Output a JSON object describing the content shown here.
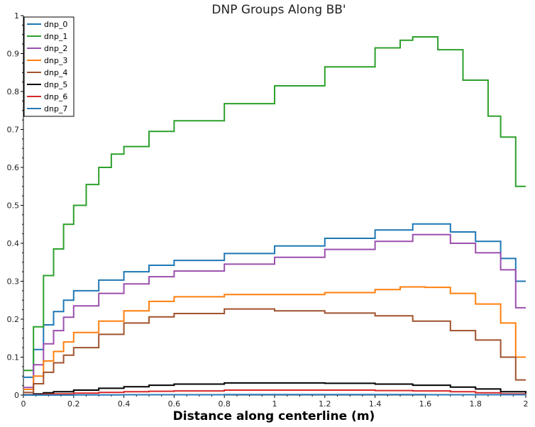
{
  "chart_data": {
    "type": "line",
    "title": "DNP Groups Along BB'",
    "xlabel": "Distance along centerline (m)",
    "ylabel": "",
    "xlim": [
      0,
      2
    ],
    "ylim": [
      0,
      1
    ],
    "xticks": [
      "0",
      "0.2",
      "0.4",
      "0.6",
      "0.8",
      "1",
      "1.2",
      "1.4",
      "1.6",
      "1.8",
      "2"
    ],
    "yticks": [
      "0",
      "0.1",
      "0.2",
      "0.3",
      "0.4",
      "0.5",
      "0.6",
      "0.7",
      "0.8",
      "0.9",
      "1"
    ],
    "grid": false,
    "legend_position": "top-left",
    "step": true,
    "series": [
      {
        "name": "dnp_0",
        "color": "#1f77b4",
        "x": [
          0,
          0.04,
          0.08,
          0.12,
          0.16,
          0.2,
          0.3,
          0.4,
          0.5,
          0.6,
          0.8,
          1.0,
          1.2,
          1.4,
          1.55,
          1.7,
          1.8,
          1.9,
          1.96,
          2.0
        ],
        "y": [
          0.047,
          0.12,
          0.185,
          0.22,
          0.25,
          0.275,
          0.303,
          0.325,
          0.342,
          0.355,
          0.373,
          0.393,
          0.413,
          0.435,
          0.451,
          0.43,
          0.405,
          0.36,
          0.3,
          0.3
        ]
      },
      {
        "name": "dnp_1",
        "color": "#2ca02c",
        "x": [
          0,
          0.04,
          0.08,
          0.12,
          0.16,
          0.2,
          0.25,
          0.3,
          0.35,
          0.4,
          0.5,
          0.6,
          0.8,
          1.0,
          1.2,
          1.4,
          1.5,
          1.55,
          1.65,
          1.75,
          1.85,
          1.9,
          1.96,
          2.0
        ],
        "y": [
          0.065,
          0.18,
          0.315,
          0.385,
          0.45,
          0.5,
          0.555,
          0.6,
          0.635,
          0.655,
          0.695,
          0.723,
          0.768,
          0.815,
          0.865,
          0.915,
          0.935,
          0.944,
          0.91,
          0.83,
          0.735,
          0.68,
          0.55,
          0.55
        ]
      },
      {
        "name": "dnp_2",
        "color": "#9b4fad",
        "x": [
          0,
          0.04,
          0.08,
          0.12,
          0.16,
          0.2,
          0.3,
          0.4,
          0.5,
          0.6,
          0.8,
          1.0,
          1.2,
          1.4,
          1.55,
          1.7,
          1.8,
          1.9,
          1.96,
          2.0
        ],
        "y": [
          0.02,
          0.08,
          0.135,
          0.17,
          0.205,
          0.235,
          0.268,
          0.293,
          0.312,
          0.327,
          0.345,
          0.363,
          0.384,
          0.405,
          0.423,
          0.4,
          0.375,
          0.33,
          0.23,
          0.23
        ]
      },
      {
        "name": "dnp_3",
        "color": "#ff7f0e",
        "x": [
          0,
          0.04,
          0.08,
          0.12,
          0.16,
          0.2,
          0.3,
          0.4,
          0.5,
          0.6,
          0.8,
          1.0,
          1.2,
          1.4,
          1.5,
          1.6,
          1.7,
          1.8,
          1.9,
          1.96,
          2.0
        ],
        "y": [
          0.015,
          0.05,
          0.09,
          0.115,
          0.14,
          0.165,
          0.195,
          0.222,
          0.247,
          0.259,
          0.265,
          0.265,
          0.27,
          0.278,
          0.285,
          0.284,
          0.268,
          0.24,
          0.19,
          0.1,
          0.1
        ]
      },
      {
        "name": "dnp_4",
        "color": "#a0522d",
        "x": [
          0,
          0.04,
          0.08,
          0.12,
          0.16,
          0.2,
          0.3,
          0.4,
          0.5,
          0.6,
          0.8,
          1.0,
          1.2,
          1.4,
          1.55,
          1.7,
          1.8,
          1.9,
          1.96,
          2.0
        ],
        "y": [
          0.007,
          0.03,
          0.06,
          0.085,
          0.105,
          0.125,
          0.16,
          0.19,
          0.206,
          0.215,
          0.227,
          0.222,
          0.216,
          0.209,
          0.195,
          0.17,
          0.145,
          0.1,
          0.04,
          0.04
        ]
      },
      {
        "name": "dnp_5",
        "color": "#000000",
        "x": [
          0,
          0.04,
          0.08,
          0.12,
          0.2,
          0.3,
          0.4,
          0.5,
          0.6,
          0.8,
          1.0,
          1.2,
          1.4,
          1.55,
          1.7,
          1.8,
          1.9,
          2.0
        ],
        "y": [
          0.001,
          0.003,
          0.006,
          0.009,
          0.013,
          0.018,
          0.022,
          0.026,
          0.029,
          0.032,
          0.032,
          0.031,
          0.029,
          0.026,
          0.021,
          0.016,
          0.009,
          0.004
        ]
      },
      {
        "name": "dnp_6",
        "color": "#d62728",
        "x": [
          0,
          0.04,
          0.08,
          0.12,
          0.2,
          0.3,
          0.4,
          0.5,
          0.6,
          0.8,
          1.0,
          1.2,
          1.4,
          1.55,
          1.7,
          1.8,
          1.9,
          2.0
        ],
        "y": [
          0.0005,
          0.001,
          0.002,
          0.003,
          0.005,
          0.007,
          0.009,
          0.01,
          0.011,
          0.013,
          0.013,
          0.013,
          0.012,
          0.011,
          0.009,
          0.006,
          0.003,
          0.002
        ]
      },
      {
        "name": "dnp_7",
        "color": "#2a7ab8",
        "x": [
          0,
          0.2,
          0.4,
          0.8,
          1.2,
          1.6,
          2.0
        ],
        "y": [
          0.0,
          0.0005,
          0.001,
          0.0015,
          0.0015,
          0.001,
          0.0005
        ]
      }
    ]
  }
}
